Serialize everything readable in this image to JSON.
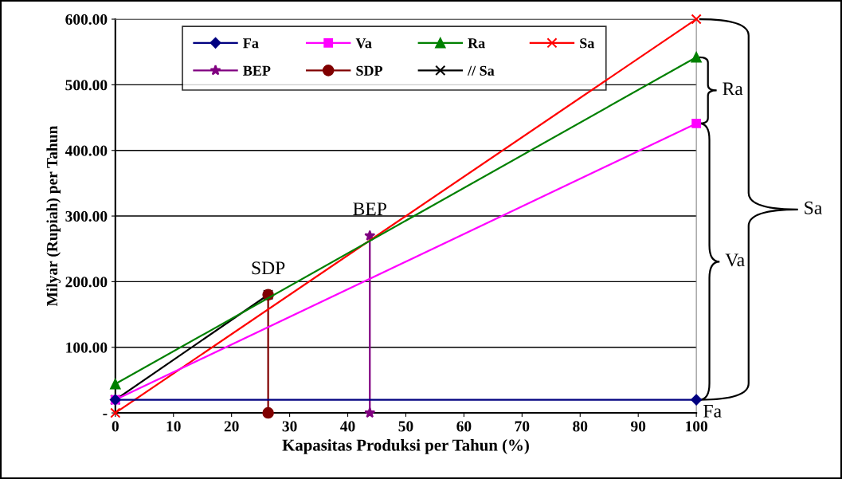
{
  "chart_data": {
    "type": "line",
    "xlabel": "Kapasitas Produksi per Tahun (%)",
    "ylabel": "Milyar (Rupiah) per Tahun",
    "xlim": [
      0,
      100
    ],
    "xticks": [
      0,
      10,
      20,
      30,
      40,
      50,
      60,
      70,
      80,
      90,
      100
    ],
    "ylim": [
      0,
      600
    ],
    "yticks": [
      {
        "value": 0,
        "label": "-"
      },
      {
        "value": 100,
        "label": "100.00"
      },
      {
        "value": 200,
        "label": "200.00"
      },
      {
        "value": 300,
        "label": "300.00"
      },
      {
        "value": 400,
        "label": "400.00"
      },
      {
        "value": 500,
        "label": "500.00"
      },
      {
        "value": 600,
        "label": "600.00"
      }
    ],
    "grid": "y",
    "legend": "top",
    "series": [
      {
        "name": "Fa",
        "color": "#000080",
        "marker": "diamond",
        "x": [
          0,
          100
        ],
        "values": [
          20,
          20
        ]
      },
      {
        "name": "Va",
        "color": "#ff00ff",
        "marker": "square",
        "x": [
          0,
          100
        ],
        "values": [
          20,
          441
        ]
      },
      {
        "name": "Ra",
        "color": "#008000",
        "marker": "triangle",
        "x": [
          0,
          100
        ],
        "values": [
          44,
          542
        ]
      },
      {
        "name": "Sa",
        "color": "#ff0000",
        "marker": "cross",
        "x": [
          0,
          100
        ],
        "values": [
          0,
          600
        ]
      },
      {
        "name": "BEP",
        "color": "#800080",
        "marker": "star",
        "x": [
          43.8,
          43.8
        ],
        "values": [
          0,
          270
        ]
      },
      {
        "name": "SDP",
        "color": "#800000",
        "marker": "circle",
        "x": [
          26.3,
          26.3
        ],
        "values": [
          0,
          180
        ]
      },
      {
        "name": "// Sa",
        "color": "#000000",
        "marker": "cross",
        "x": [
          0,
          26.3
        ],
        "values": [
          20,
          180
        ]
      }
    ],
    "annotations": [
      {
        "text": "BEP",
        "x": 43.8,
        "y": 270
      },
      {
        "text": "SDP",
        "x": 26.3,
        "y": 180
      },
      "Ra",
      "Va",
      "Sa",
      {
        "text": "Fa",
        "x": 100,
        "y": 20
      }
    ]
  }
}
